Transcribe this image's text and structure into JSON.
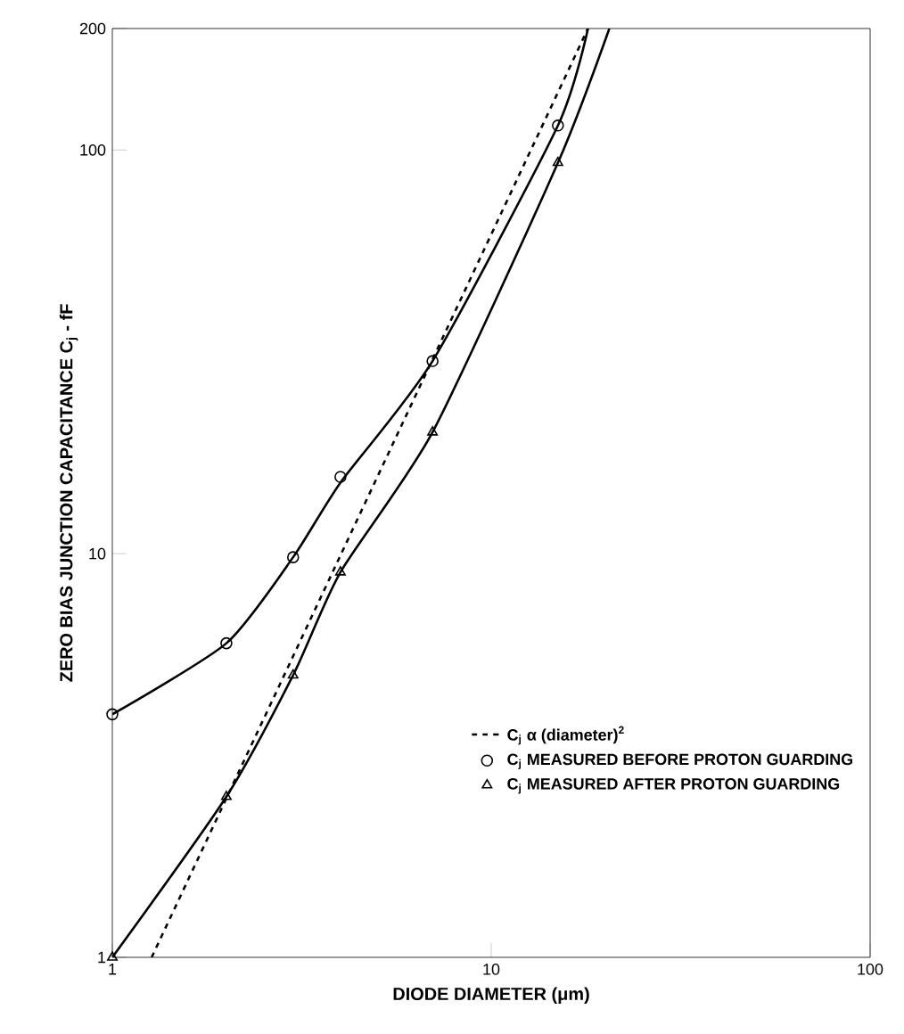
{
  "chart_data": {
    "type": "line",
    "xlabel": "DIODE DIAMETER (μm)",
    "ylabel": "ZERO BIAS JUNCTION CAPACITANCE C$_{j}$ - fF",
    "log": "xy",
    "xlim": [
      1,
      100
    ],
    "ylim": [
      1,
      200
    ],
    "xticks": [
      1,
      10,
      100
    ],
    "yticks": [
      1,
      10,
      100,
      200
    ],
    "legend": "bottom right",
    "grid": false,
    "series": [
      {
        "name": "C$_{j}$ α (diameter)$^{2}$",
        "color": "#000000",
        "line_style": "dashed",
        "marker": "none",
        "x": [
          1.27,
          18
        ],
        "values": [
          1,
          200
        ]
      },
      {
        "name": "C$_{j}$ MEASURED BEFORE PROTON GUARDING",
        "type": "scatter",
        "color": "#000000",
        "marker": "circle",
        "x": [
          1,
          2,
          3,
          4,
          7,
          15
        ],
        "values": [
          4,
          6,
          9.8,
          15.5,
          30,
          115
        ]
      },
      {
        "name": "C$_{j}$ MEASURED AFTER PROTON GUARDING",
        "type": "scatter",
        "color": "#000000",
        "marker": "triangle",
        "x": [
          1,
          2,
          3,
          4,
          7,
          15
        ],
        "values": [
          1,
          2.5,
          5,
          9,
          20,
          93
        ]
      },
      {
        "color": "#000000",
        "line_style": "solid",
        "marker": "none",
        "x": [
          1,
          2,
          3,
          4,
          7,
          15,
          18
        ],
        "values": [
          4,
          6,
          9.8,
          15,
          30,
          115,
          200
        ]
      },
      {
        "color": "#000000",
        "line_style": "solid",
        "marker": "none",
        "x": [
          1,
          2,
          3,
          4,
          7,
          15,
          20.5
        ],
        "values": [
          1,
          2.5,
          5,
          9,
          20,
          93,
          200
        ]
      }
    ]
  }
}
